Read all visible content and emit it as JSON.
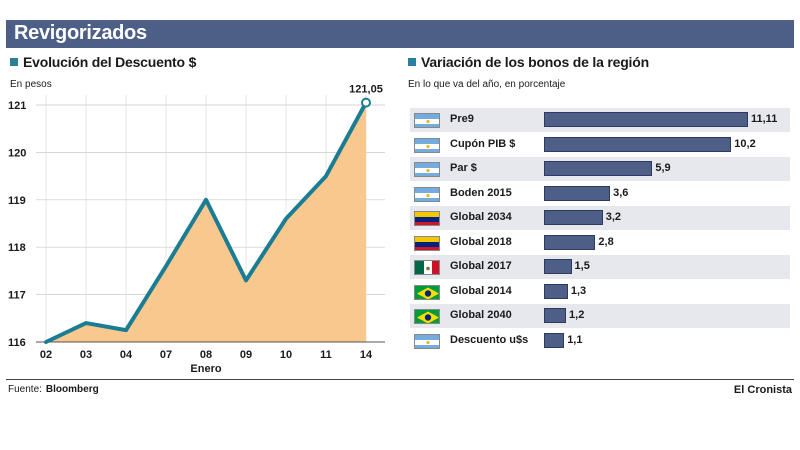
{
  "header": {
    "title": "Revigorizados"
  },
  "left_chart": {
    "title": "Evolución del Descuento $",
    "unit": "En pesos"
  },
  "right_chart": {
    "title": "Variación de los bonos de la región",
    "unit": "En lo que va del año, en porcentaje"
  },
  "footer": {
    "source_label": "Fuente:",
    "source": "Bloomberg",
    "brand": "El Cronista"
  },
  "colors": {
    "area": "#f9c88e",
    "line": "#1a7d93",
    "bar": "#4d5f87",
    "banner": "#4d5f87"
  },
  "chart_data": [
    {
      "type": "area",
      "title": "Evolución del Descuento $",
      "ylabel": "En pesos",
      "xlabel": "Enero",
      "categories": [
        "02",
        "03",
        "04",
        "07",
        "08",
        "09",
        "10",
        "11",
        "14"
      ],
      "values": [
        116.0,
        116.4,
        116.25,
        117.6,
        119.0,
        117.3,
        118.6,
        119.5,
        121.05
      ],
      "ylim": [
        116,
        121
      ],
      "yticks": [
        "116",
        "117",
        "118",
        "119",
        "120",
        "121"
      ],
      "last_label": "121,05"
    },
    {
      "type": "bar",
      "orientation": "horizontal",
      "title": "Variación de los bonos de la región",
      "subtitle": "En lo que va del año, en porcentaje",
      "categories": [
        "Pre9",
        "Cupón PIB $",
        "Par $",
        "Boden 2015",
        "Global 2034",
        "Global 2018",
        "Global 2017",
        "Global 2014",
        "Global 2040",
        "Descuento u$s"
      ],
      "values": [
        11.11,
        10.2,
        5.9,
        3.6,
        3.2,
        2.8,
        1.5,
        1.3,
        1.2,
        1.1
      ],
      "value_labels": [
        "11,11",
        "10,2",
        "5,9",
        "3,6",
        "3,2",
        "2,8",
        "1,5",
        "1,3",
        "1,2",
        "1,1"
      ],
      "flags": [
        "argentina",
        "argentina",
        "argentina",
        "argentina",
        "venezuela",
        "venezuela",
        "mexico",
        "brazil",
        "brazil",
        "argentina"
      ],
      "xlim": [
        0,
        11.11
      ]
    }
  ]
}
